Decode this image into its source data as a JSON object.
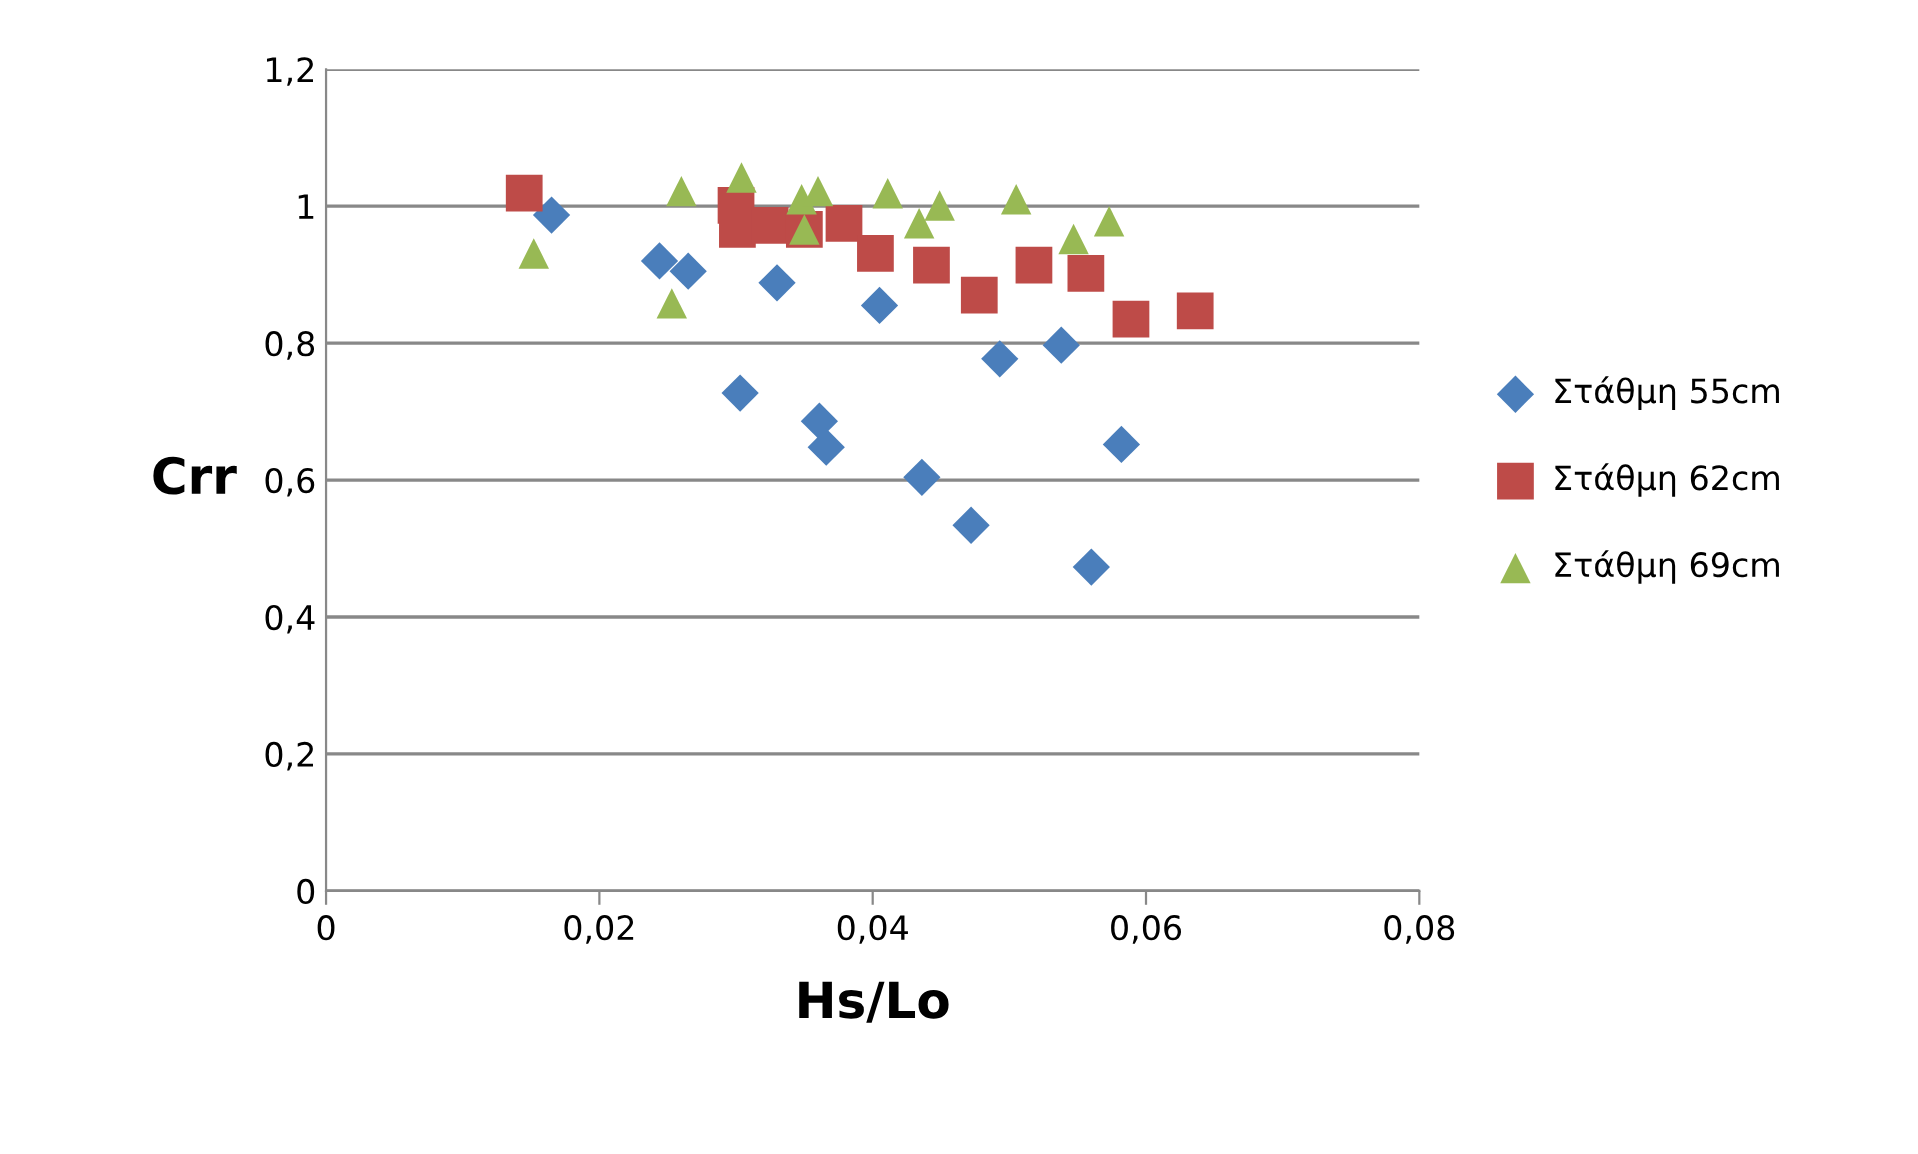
{
  "chart_data": {
    "type": "scatter",
    "xlabel": "Hs/Lo",
    "ylabel": "Crr",
    "xlim": [
      0,
      0.08
    ],
    "xticks": [
      {
        "value": 0,
        "label": "0"
      },
      {
        "value": 0.02,
        "label": "0,02"
      },
      {
        "value": 0.04,
        "label": "0,04"
      },
      {
        "value": 0.06,
        "label": "0,06"
      },
      {
        "value": 0.08,
        "label": "0,08"
      }
    ],
    "ylim": [
      0,
      1.2
    ],
    "yticks": [
      {
        "value": 0,
        "label": "0"
      },
      {
        "value": 0.2,
        "label": "0,2"
      },
      {
        "value": 0.4,
        "label": "0,4"
      },
      {
        "value": 0.6,
        "label": "0,6"
      },
      {
        "value": 0.8,
        "label": "0,8"
      },
      {
        "value": 1,
        "label": "1"
      },
      {
        "value": 1.2,
        "label": "1,2"
      }
    ],
    "grid": "y",
    "legend": "right",
    "series": [
      {
        "name": "Στάθμη 55cm",
        "color": "#4a7ebb",
        "marker": "diamond",
        "x": [
          0.0165,
          0.0244,
          0.0265,
          0.033,
          0.0303,
          0.0361,
          0.0366,
          0.0405,
          0.0436,
          0.0472,
          0.0493,
          0.0538,
          0.056,
          0.0582
        ],
        "values": [
          0.987,
          0.92,
          0.905,
          0.888,
          0.727,
          0.686,
          0.648,
          0.855,
          0.604,
          0.534,
          0.777,
          0.797,
          0.473,
          0.652
        ]
      },
      {
        "name": "Στάθμη 62cm",
        "color": "#be4b48",
        "marker": "square",
        "x": [
          0.0145,
          0.03,
          0.0301,
          0.0325,
          0.035,
          0.0379,
          0.0402,
          0.0443,
          0.0478,
          0.0518,
          0.0556,
          0.0589,
          0.0636
        ],
        "values": [
          1.019,
          1.001,
          0.966,
          0.972,
          0.966,
          0.975,
          0.931,
          0.914,
          0.87,
          0.914,
          0.902,
          0.835,
          0.847
        ]
      },
      {
        "name": "Στάθμη 69cm",
        "color": "#98b954",
        "marker": "triangle",
        "x": [
          0.0152,
          0.0253,
          0.026,
          0.0304,
          0.0348,
          0.036,
          0.035,
          0.0411,
          0.0434,
          0.0449,
          0.0505,
          0.0547,
          0.0573
        ],
        "values": [
          0.931,
          0.858,
          1.022,
          1.042,
          1.01,
          1.022,
          0.966,
          1.019,
          0.975,
          1.001,
          1.01,
          0.952,
          0.978
        ]
      }
    ]
  }
}
